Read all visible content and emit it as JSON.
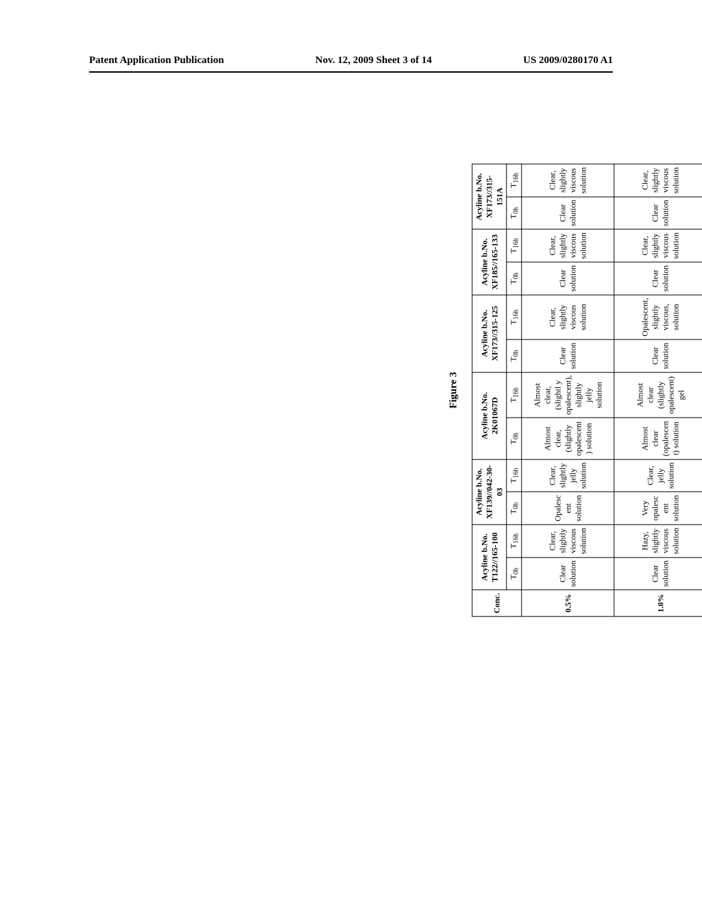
{
  "header": {
    "left": "Patent Application Publication",
    "center": "Nov. 12, 2009  Sheet 3 of 14",
    "right": "US 2009/0280170 A1"
  },
  "figure_label": "Figure 3",
  "table": {
    "corner": "Conc.",
    "batches": [
      {
        "line1": "Acyline b.No.",
        "line2": "T122//165-100"
      },
      {
        "line1": "Acyline b.No.",
        "line2": "XF139//042-30-03"
      },
      {
        "line1": "Acyline b.No.",
        "line2": "2K01067D"
      },
      {
        "line1": "Acyline b.No.",
        "line2": "XF173//315-125"
      },
      {
        "line1": "Acyline b.No.",
        "line2": "XF185//165-133"
      },
      {
        "line1": "Acyline b.No.",
        "line2": "XF173//315-151A"
      }
    ],
    "time_labels": {
      "t0_prefix": "T",
      "t0_sub": "0h",
      "t16_prefix": "T",
      "t16_sub": "16h"
    },
    "rows": [
      {
        "conc": "0.5%",
        "cells": [
          "Clear solution",
          "Clear, slightly viscous solution",
          "Opalesc ent solution",
          "Clear, slightly jelly solution",
          "Almost clear, (slightly opalescent ) solution",
          "Almost clear,(slightl y opalescent), slightly jelly solution",
          "Clear solution",
          "Clear, slightly viscous solution",
          "Clear solution",
          "Clear, slightly viscous solution",
          "Clear solution",
          "Clear, slightly viscous solution"
        ]
      },
      {
        "conc": "1.0%",
        "cells": [
          "Clear solution",
          "Hazy, slightly viscous solution",
          "Very opalesc ent solution",
          "Clear, jelly solution",
          "Almost clear (opalescen t) solution",
          "Almost clear (slightly opalescent) gel",
          "Clear solution",
          "Opalescent, slightly viscous, solution",
          "Clear solution",
          "Clear, slightly viscous solution",
          "Clear solution",
          "Clear, slightly viscous solution"
        ]
      }
    ]
  }
}
